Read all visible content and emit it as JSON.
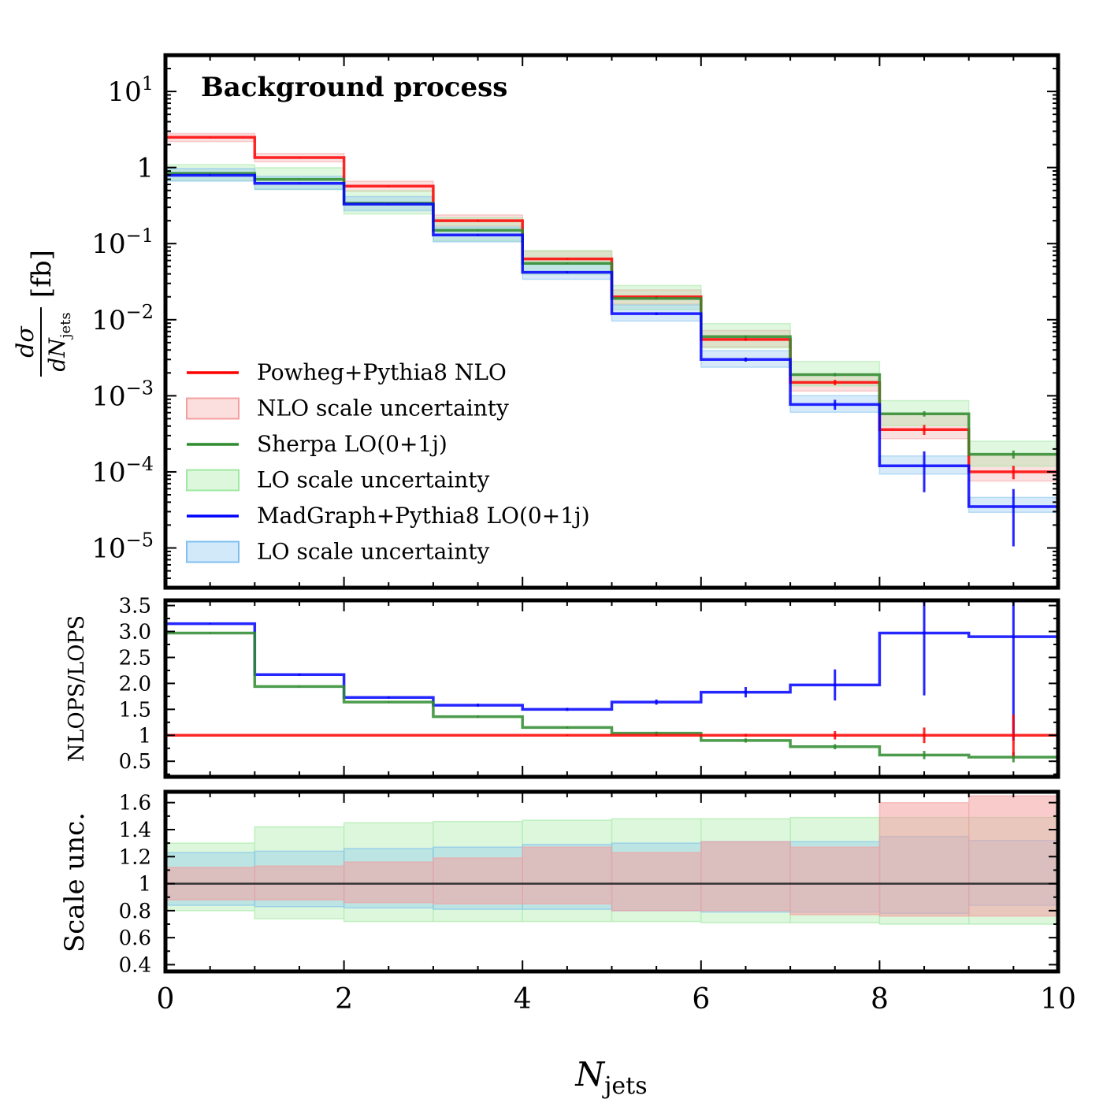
{
  "chart_data": [
    {
      "type": "line",
      "subtype": "histogram-step",
      "panel": "main",
      "title": "Background process",
      "ylabel_numerator": "dσ",
      "ylabel_denominator": "dN",
      "ylabel_subscript": "jets",
      "ylabel_unit": "[fb]",
      "yscale": "log",
      "ylim": [
        3e-06,
        30
      ],
      "xlim": [
        0,
        10
      ],
      "grid": false,
      "legend_position": "lower-left",
      "ytick_labels": [
        {
          "value": 10,
          "base": "10",
          "exp": "1"
        },
        {
          "value": 1,
          "base": "1",
          "exp": ""
        },
        {
          "value": 0.1,
          "base": "10",
          "exp": "−1"
        },
        {
          "value": 0.01,
          "base": "10",
          "exp": "−2"
        },
        {
          "value": 0.001,
          "base": "10",
          "exp": "−3"
        },
        {
          "value": 0.0001,
          "base": "10",
          "exp": "−4"
        },
        {
          "value": 1e-05,
          "base": "10",
          "exp": "−5"
        }
      ],
      "bin_edges": [
        0,
        1,
        2,
        3,
        4,
        5,
        6,
        7,
        8,
        9,
        10
      ],
      "series": [
        {
          "name": "Powheg+Pythia8 NLO",
          "color": "#ff0000",
          "values": [
            2.5,
            1.35,
            0.57,
            0.2,
            0.063,
            0.02,
            0.0055,
            0.0015,
            0.00036,
            0.0001
          ],
          "errors_rel": [
            0.01,
            0.01,
            0.01,
            0.02,
            0.02,
            0.03,
            0.04,
            0.08,
            0.15,
            0.2
          ]
        },
        {
          "name": "Sherpa LO(0+1j)",
          "color": "#2e8b2e",
          "values": [
            0.84,
            0.7,
            0.34,
            0.15,
            0.055,
            0.019,
            0.006,
            0.0019,
            0.00058,
            0.00017
          ],
          "errors_rel": [
            0.01,
            0.01,
            0.01,
            0.01,
            0.02,
            0.03,
            0.04,
            0.05,
            0.08,
            0.12
          ]
        },
        {
          "name": "MadGraph+Pythia8 LO(0+1j)",
          "color": "#0000ff",
          "values": [
            0.79,
            0.62,
            0.33,
            0.13,
            0.042,
            0.012,
            0.003,
            0.00077,
            0.00012,
            3.5e-05
          ],
          "errors_rel": [
            0.01,
            0.01,
            0.01,
            0.02,
            0.03,
            0.04,
            0.06,
            0.15,
            0.55,
            0.7
          ]
        }
      ],
      "bands": [
        {
          "name": "NLO scale uncertainty",
          "color": "#f4a0a0",
          "lo_rel": [
            0.88,
            0.88,
            0.86,
            0.85,
            0.85,
            0.8,
            0.8,
            0.77,
            0.76,
            0.76
          ],
          "hi_rel": [
            1.12,
            1.13,
            1.16,
            1.19,
            1.27,
            1.23,
            1.31,
            1.27,
            1.6,
            1.65
          ]
        },
        {
          "name": "LO scale uncertainty",
          "color": "#9fe79f",
          "lo_rel": [
            0.8,
            0.74,
            0.72,
            0.72,
            0.72,
            0.72,
            0.71,
            0.71,
            0.7,
            0.7
          ],
          "hi_rel": [
            1.3,
            1.42,
            1.45,
            1.46,
            1.47,
            1.48,
            1.48,
            1.49,
            1.49,
            1.49
          ]
        },
        {
          "name": "LO scale uncertainty",
          "color": "#7fbfef",
          "lo_rel": [
            0.84,
            0.83,
            0.82,
            0.81,
            0.81,
            0.8,
            0.79,
            0.79,
            0.78,
            0.84
          ],
          "hi_rel": [
            1.23,
            1.24,
            1.26,
            1.27,
            1.29,
            1.3,
            1.31,
            1.31,
            1.35,
            1.32
          ]
        }
      ]
    },
    {
      "type": "line",
      "subtype": "histogram-step",
      "panel": "ratio",
      "ylabel": "NLOPS/LOPS",
      "ylim": [
        0.2,
        3.6
      ],
      "xlim": [
        0,
        10
      ],
      "ytick_labels": [
        "3.5",
        "3.0",
        "2.5",
        "2.0",
        "1.5",
        "1",
        "0.5"
      ],
      "ytick_values": [
        3.5,
        3.0,
        2.5,
        2.0,
        1.5,
        1.0,
        0.5
      ],
      "bin_edges": [
        0,
        1,
        2,
        3,
        4,
        5,
        6,
        7,
        8,
        9,
        10
      ],
      "series": [
        {
          "color": "#0000ff",
          "values": [
            3.15,
            2.17,
            1.73,
            1.58,
            1.5,
            1.64,
            1.83,
            1.97,
            2.97,
            2.9
          ],
          "errors": [
            0.01,
            0.02,
            0.02,
            0.03,
            0.03,
            0.05,
            0.1,
            0.3,
            1.2,
            2.0
          ]
        },
        {
          "color": "#2e8b2e",
          "values": [
            2.97,
            1.94,
            1.64,
            1.36,
            1.15,
            1.04,
            0.9,
            0.78,
            0.62,
            0.58
          ],
          "errors": [
            0.01,
            0.01,
            0.01,
            0.02,
            0.02,
            0.03,
            0.04,
            0.05,
            0.08,
            0.1
          ]
        },
        {
          "color": "#ff0000",
          "values": [
            1,
            1,
            1,
            1,
            1,
            1,
            1,
            1,
            1,
            1
          ],
          "errors": [
            0.0,
            0.0,
            0.0,
            0.0,
            0.01,
            0.01,
            0.03,
            0.08,
            0.15,
            0.4
          ]
        }
      ]
    },
    {
      "type": "area",
      "panel": "scale",
      "ylabel": "Scale unc.",
      "ylim": [
        0.35,
        1.68
      ],
      "xlim": [
        0,
        10
      ],
      "xlabel": "N",
      "xlabel_subscript": "jets",
      "xtick_labels": [
        "0",
        "2",
        "4",
        "6",
        "8",
        "10"
      ],
      "xtick_values": [
        0,
        2,
        4,
        6,
        8,
        10
      ],
      "ytick_labels": [
        "1.6",
        "1.4",
        "1.2",
        "1",
        "0.8",
        "0.6",
        "0.4"
      ],
      "ytick_values": [
        1.6,
        1.4,
        1.2,
        1.0,
        0.8,
        0.6,
        0.4
      ],
      "bin_edges": [
        0,
        1,
        2,
        3,
        4,
        5,
        6,
        7,
        8,
        9,
        10
      ]
    }
  ]
}
